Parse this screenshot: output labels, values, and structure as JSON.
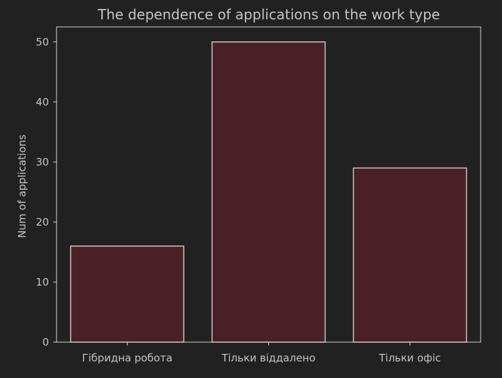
{
  "colors": {
    "background": "#212121",
    "bar_fill": "#4a1f27",
    "bar_stroke": "#cfc6c6",
    "axis": "#d8d2d2",
    "text": "#c9c2c2"
  },
  "chart_data": {
    "type": "bar",
    "title": "The dependence of applications on the work type",
    "xlabel": "",
    "ylabel": "Num of applications",
    "categories": [
      "Гібридна робота",
      "Тільки віддалено",
      "Тільки офіс"
    ],
    "values": [
      16,
      50,
      29
    ],
    "ylim": [
      0,
      52.5
    ],
    "yticks": [
      0,
      10,
      20,
      30,
      40,
      50
    ],
    "grid": false,
    "legend": "none"
  }
}
